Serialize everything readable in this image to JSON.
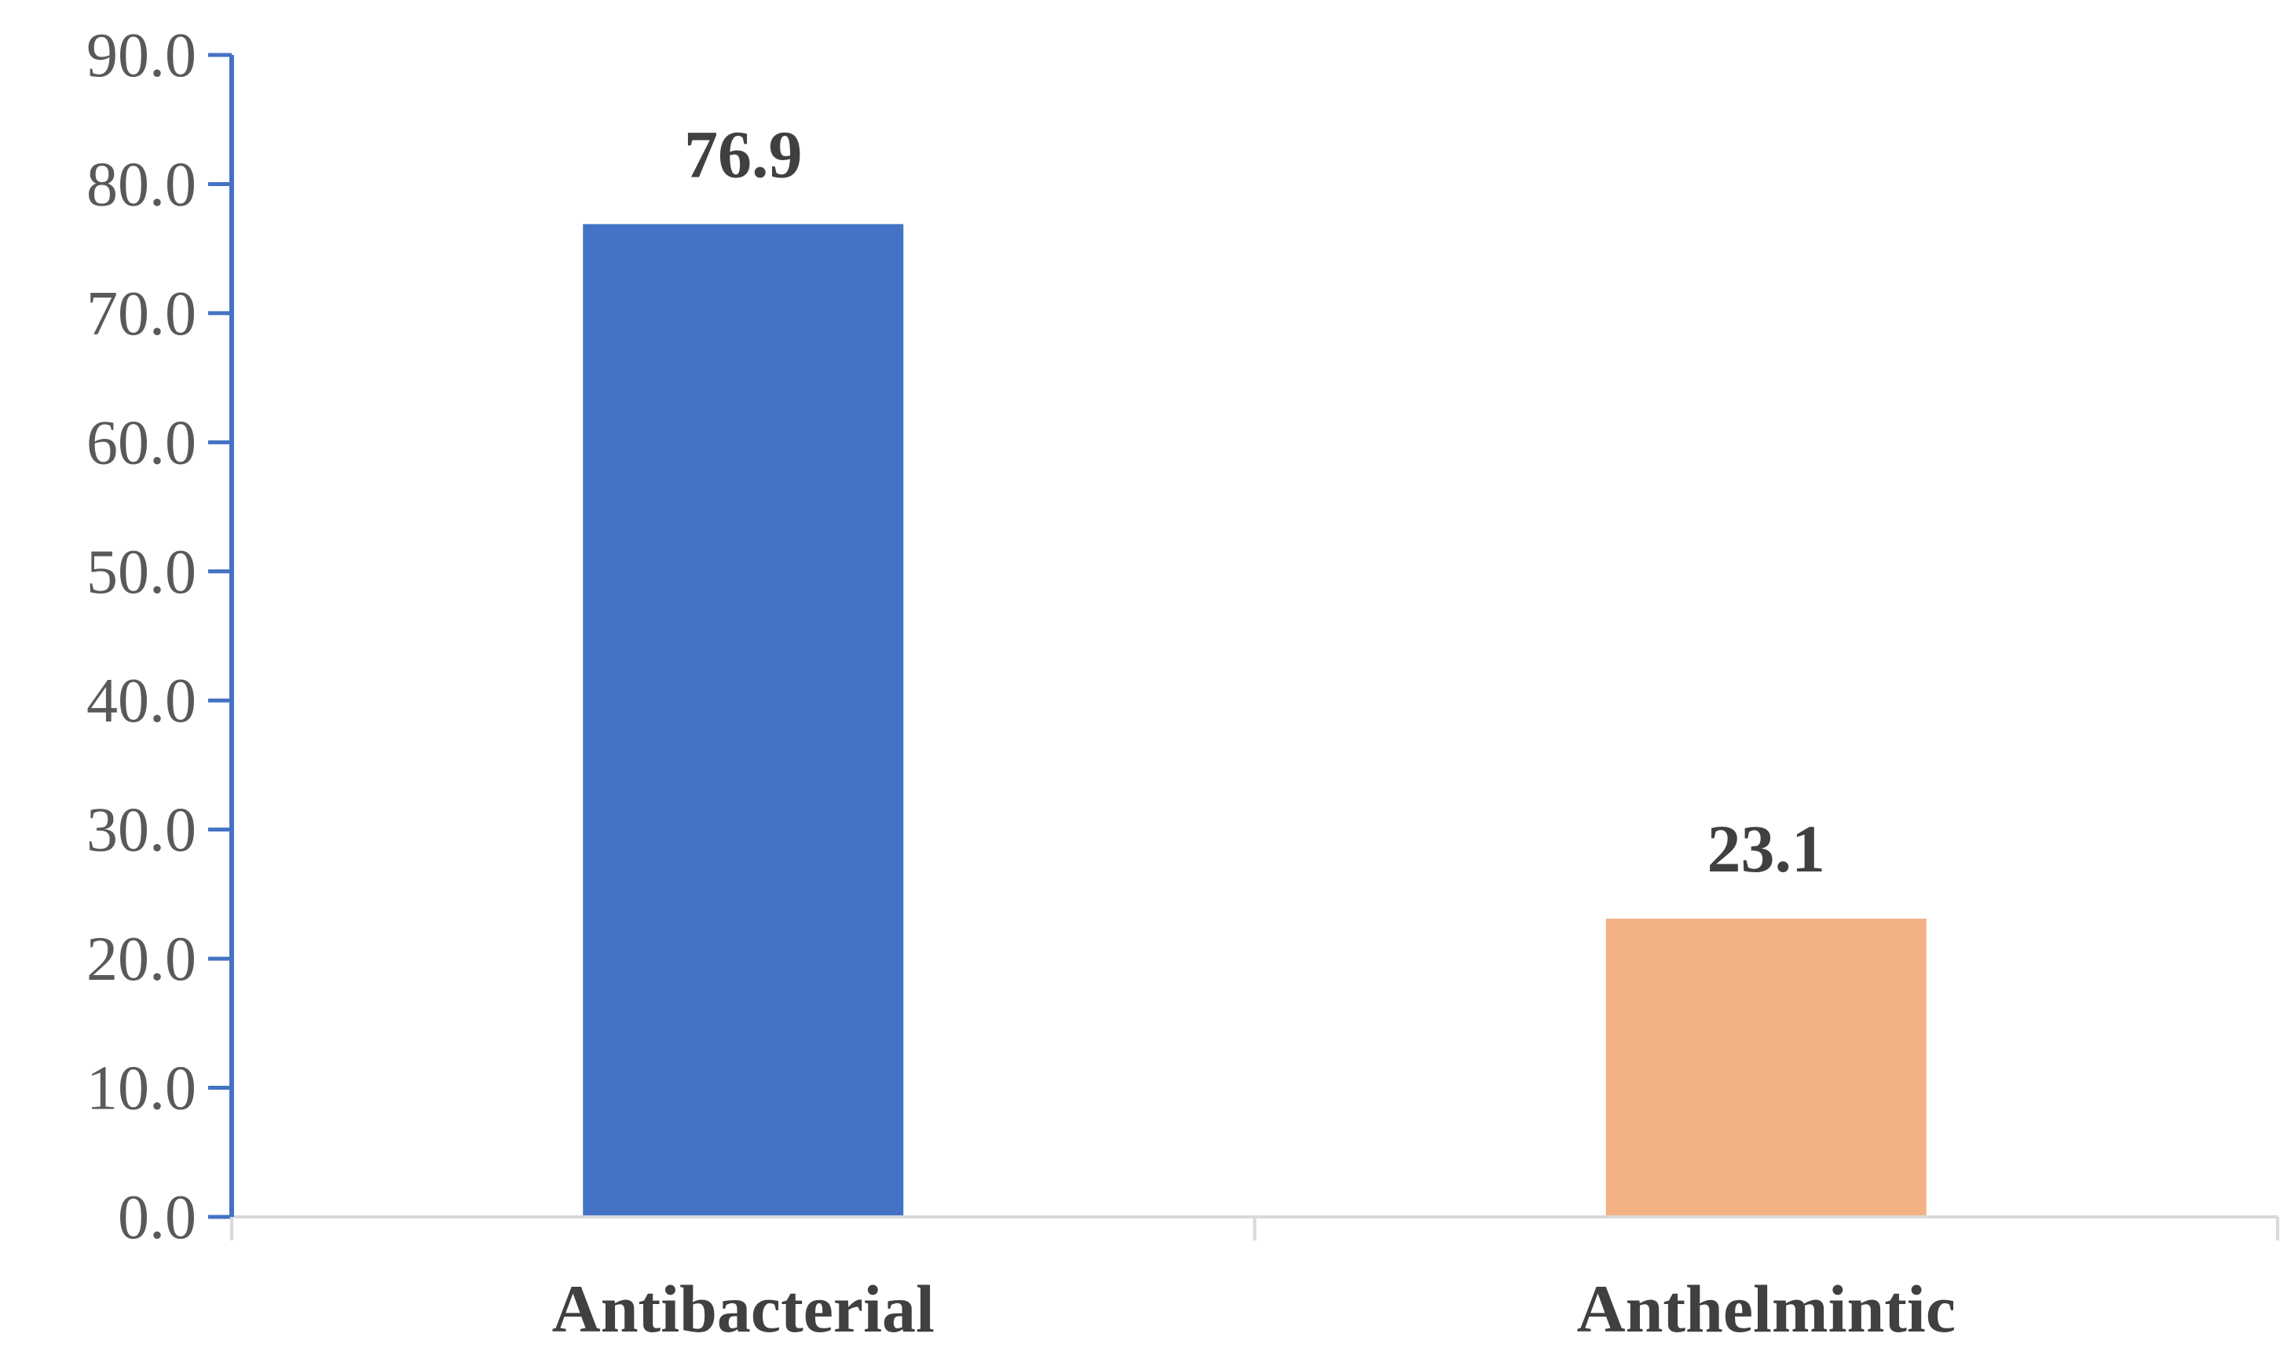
{
  "chart_data": {
    "type": "bar",
    "title": "",
    "xlabel": "",
    "ylabel": "",
    "categories": [
      "Antibacterial",
      "Anthelmintic"
    ],
    "values": [
      76.9,
      23.1
    ],
    "data_labels": [
      "76.9",
      "23.1"
    ],
    "colors": [
      "#4472C4",
      "#F4B183"
    ],
    "ylim": [
      0,
      90
    ],
    "yticks": [
      "0.0",
      "10.0",
      "20.0",
      "30.0",
      "40.0",
      "50.0",
      "60.0",
      "70.0",
      "80.0",
      "90.0"
    ],
    "grid": false,
    "legend": "none",
    "y_axis_color": "#4472C4",
    "x_axis_color": "#D9D9D9"
  }
}
